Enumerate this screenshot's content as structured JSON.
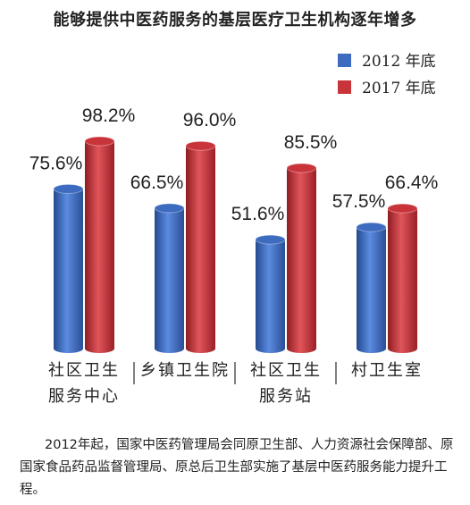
{
  "chart_data": {
    "type": "bar",
    "title": "能够提供中医药服务的基层医疗卫生机构逐年增多",
    "categories": [
      [
        "社区卫生",
        "服务中心"
      ],
      [
        "乡镇卫生院"
      ],
      [
        "社区卫生",
        "服务站"
      ],
      [
        "村卫生室"
      ]
    ],
    "series": [
      {
        "name": "2012 年底",
        "color": "#3d6bbf",
        "values": [
          75.6,
          66.5,
          51.6,
          57.5
        ]
      },
      {
        "name": "2017 年底",
        "color": "#c9343a",
        "values": [
          98.2,
          96.0,
          85.5,
          66.4
        ]
      }
    ],
    "value_labels": [
      [
        "75.6%",
        "66.5%",
        "51.6%",
        "57.5%"
      ],
      [
        "98.2%",
        "96.0%",
        "85.5%",
        "66.4%"
      ]
    ],
    "ylim": [
      0,
      100
    ],
    "legend": "top-right",
    "grid": false
  },
  "caption": "2012年起，国家中医药管理局会同原卫生部、人力资源社会保障部、原国家食品药品监督管理局、原总后卫生部实施了基层中医药服务能力提升工程。"
}
